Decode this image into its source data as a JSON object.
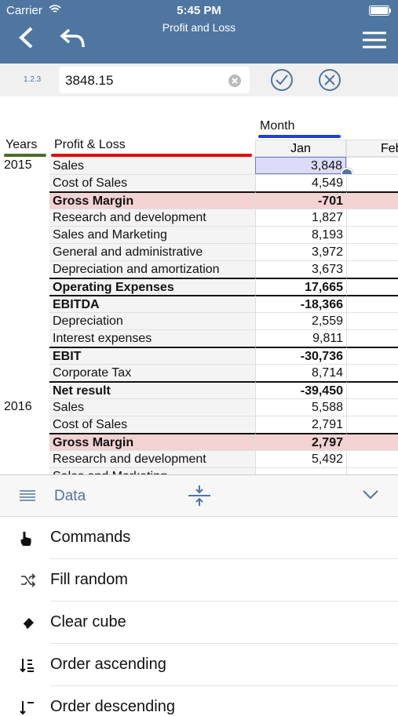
{
  "status_bar": {
    "carrier": "Carrier",
    "time": "5:45 PM"
  },
  "nav_bar": {
    "title": "Profit and Loss"
  },
  "input_bar": {
    "icon_label": "1.2.3",
    "value": "3848.15"
  },
  "grid": {
    "column_dimension": "Month",
    "row_dimensions": [
      "Years",
      "Profit & Loss"
    ],
    "columns": [
      "Jan",
      "Feb"
    ],
    "groups": [
      {
        "year": "2015",
        "rows": [
          {
            "label": "Sales",
            "jan": "3,848",
            "selected": true
          },
          {
            "label": "Cost of Sales",
            "jan": "4,549"
          },
          {
            "label": "Gross Margin",
            "jan": "-701",
            "style": "margin"
          },
          {
            "label": "Research and development",
            "jan": "1,827"
          },
          {
            "label": "Sales and Marketing",
            "jan": "8,193"
          },
          {
            "label": "General and administrative",
            "jan": "3,972"
          },
          {
            "label": "Depreciation and amortization",
            "jan": "3,673"
          },
          {
            "label": "Operating Expenses",
            "jan": "17,665",
            "style": "total"
          },
          {
            "label": "EBITDA",
            "jan": "-18,366",
            "style": "total"
          },
          {
            "label": "Depreciation",
            "jan": "2,559"
          },
          {
            "label": "Interest expenses",
            "jan": "9,811"
          },
          {
            "label": "EBIT",
            "jan": "-30,736",
            "style": "total"
          },
          {
            "label": "Corporate Tax",
            "jan": "8,714"
          },
          {
            "label": "Net result",
            "jan": "-39,450",
            "style": "total"
          }
        ]
      },
      {
        "year": "2016",
        "rows": [
          {
            "label": "Sales",
            "jan": "5,588"
          },
          {
            "label": "Cost of Sales",
            "jan": "2,791"
          },
          {
            "label": "Gross Margin",
            "jan": "2,797",
            "style": "margin"
          },
          {
            "label": "Research and development",
            "jan": "5,492"
          },
          {
            "label": "Sales and Marketing"
          }
        ]
      }
    ]
  },
  "panel": {
    "title": "Data",
    "items": [
      "Commands",
      "Fill random",
      "Clear cube",
      "Order ascending",
      "Order descending"
    ]
  }
}
